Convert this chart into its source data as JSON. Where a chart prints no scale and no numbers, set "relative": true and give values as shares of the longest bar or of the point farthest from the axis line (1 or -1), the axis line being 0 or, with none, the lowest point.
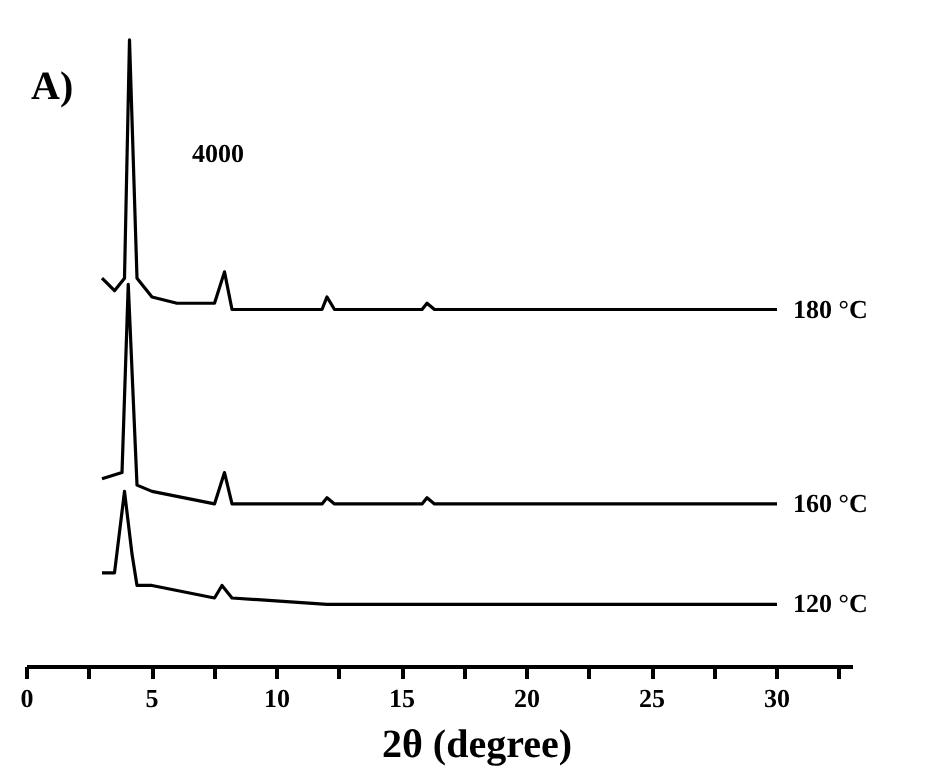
{
  "chart_data": {
    "type": "line",
    "relative": true,
    "xlabel": "2θ  (degree)",
    "legend": false,
    "grid": false,
    "marker": "none",
    "line_style": "solid",
    "tick_labels": "x",
    "xlim": [
      0,
      33
    ],
    "xticks": [
      0,
      {
        "value": 2.5,
        "label": null
      },
      5,
      {
        "value": 7.5,
        "label": null
      },
      10,
      {
        "value": 12.5,
        "label": null
      },
      15,
      {
        "value": 17.5,
        "label": null
      },
      20,
      {
        "value": 22.5,
        "label": null
      },
      25,
      {
        "value": 27.5,
        "label": null
      },
      30,
      {
        "value": 32.5,
        "label": null
      }
    ],
    "annotations": [
      "A)",
      "4000"
    ],
    "series": [
      {
        "name": "180 °C",
        "color": "#000000",
        "x": [
          3,
          3.5,
          3.9,
          4.1,
          4.4,
          5,
          6,
          7.5,
          7.9,
          8.2,
          10,
          11.8,
          12,
          12.3,
          15.8,
          16,
          16.3,
          20,
          30
        ],
        "values": [
          0.62,
          0.6,
          0.62,
          1.0,
          0.62,
          0.59,
          0.58,
          0.58,
          0.63,
          0.57,
          0.57,
          0.57,
          0.59,
          0.57,
          0.57,
          0.58,
          0.57,
          0.57,
          0.57
        ]
      },
      {
        "name": "160 °C",
        "color": "#000000",
        "x": [
          3,
          3.8,
          4.05,
          4.4,
          5,
          7.5,
          7.9,
          8.2,
          11.8,
          12,
          12.3,
          15.8,
          16,
          16.3,
          20,
          30
        ],
        "values": [
          0.3,
          0.31,
          0.61,
          0.29,
          0.28,
          0.26,
          0.31,
          0.26,
          0.26,
          0.27,
          0.26,
          0.26,
          0.27,
          0.26,
          0.26,
          0.26
        ]
      },
      {
        "name": "120 °C",
        "color": "#000000",
        "x": [
          3,
          3.5,
          3.9,
          4.2,
          4.4,
          5,
          7.5,
          7.8,
          8.2,
          12,
          30
        ],
        "values": [
          0.15,
          0.15,
          0.28,
          0.18,
          0.13,
          0.13,
          0.11,
          0.13,
          0.11,
          0.1,
          0.1
        ]
      }
    ]
  }
}
